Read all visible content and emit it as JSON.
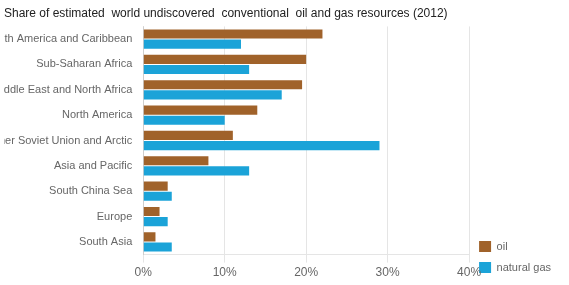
{
  "chart_data": {
    "type": "bar",
    "orientation": "horizontal",
    "title": "Share of estimated  world undiscovered  conventional  oil and gas resources (2012)",
    "categories": [
      "South America and Caribbean",
      "Sub-Saharan Africa",
      "Middle East and North Africa",
      "North America",
      "Former Soviet Union and Arctic",
      "Asia and Pacific",
      "South China Sea",
      "Europe",
      "South Asia"
    ],
    "series": [
      {
        "name": "oil",
        "color": "#A0622A",
        "values": [
          22,
          20,
          19.5,
          14,
          11,
          8,
          3,
          2,
          1.5
        ]
      },
      {
        "name": "natural gas",
        "color": "#1BA3D8",
        "values": [
          12,
          13,
          17,
          10,
          29,
          13,
          3.5,
          3,
          3.5
        ]
      }
    ],
    "xlim": [
      0,
      40
    ],
    "xticks": [
      {
        "value": 0,
        "label": "0%"
      },
      {
        "value": 10,
        "label": "10%"
      },
      {
        "value": 20,
        "label": "20%"
      },
      {
        "value": 30,
        "label": "30%"
      },
      {
        "value": 40,
        "label": "40%"
      }
    ],
    "grid": true,
    "legend": "lower right"
  }
}
